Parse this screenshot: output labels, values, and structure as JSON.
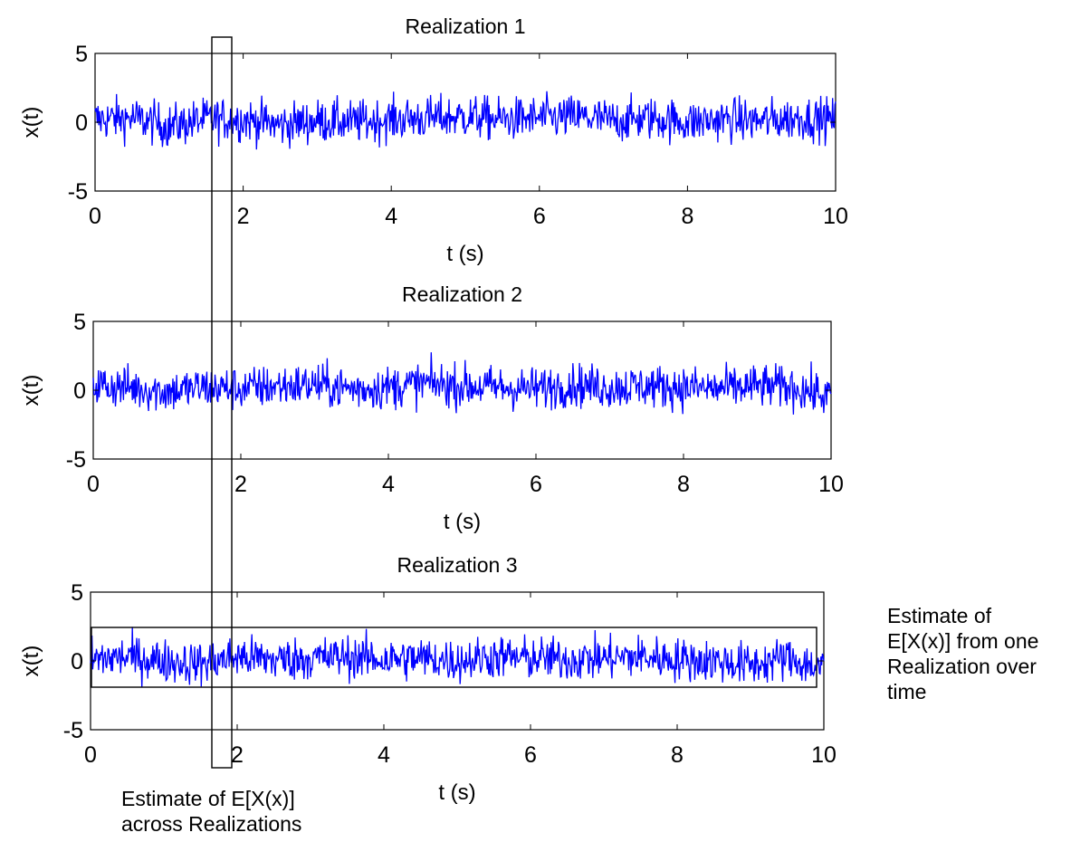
{
  "chart_data": [
    {
      "type": "line",
      "title": "Realization 1",
      "xlabel": "t (s)",
      "ylabel": "x(t)",
      "xlim": [
        0,
        10
      ],
      "ylim": [
        -5,
        5
      ],
      "xticks": [
        0,
        2,
        4,
        6,
        8,
        10
      ],
      "yticks": [
        -5,
        0,
        5
      ],
      "grid": false,
      "series": [
        {
          "color": "#0000ff",
          "x": [
            0,
            0.5,
            1,
            1.5,
            2,
            2.5,
            3,
            3.5,
            4,
            4.5,
            5,
            5.5,
            6,
            6.5,
            7,
            7.5,
            8,
            8.5,
            9,
            9.5,
            10
          ],
          "y": [
            0.2,
            0.3,
            -0.3,
            0.2,
            0.2,
            -0.2,
            0.1,
            0.0,
            0.2,
            0.3,
            0.4,
            0.2,
            0.3,
            0.4,
            0.1,
            0.3,
            0.0,
            0.2,
            0.1,
            0.3,
            0.2
          ]
        }
      ]
    },
    {
      "type": "line",
      "title": "Realization 2",
      "xlabel": "t (s)",
      "ylabel": "x(t)",
      "xlim": [
        0,
        10
      ],
      "ylim": [
        -5,
        5
      ],
      "xticks": [
        0,
        2,
        4,
        6,
        8,
        10
      ],
      "yticks": [
        -5,
        0,
        5
      ],
      "grid": false,
      "series": [
        {
          "color": "#0000ff",
          "x": [
            0,
            0.5,
            1,
            1.5,
            2,
            2.5,
            3,
            3.5,
            4,
            4.5,
            5,
            5.5,
            6,
            6.5,
            7,
            7.5,
            8,
            8.5,
            9,
            9.5,
            10
          ],
          "y": [
            0.4,
            0.2,
            -0.1,
            0.2,
            0.1,
            0.3,
            0.4,
            0.1,
            0.2,
            0.5,
            0.3,
            0.2,
            0.1,
            0.4,
            0.2,
            0.3,
            0.2,
            0.1,
            0.3,
            0.2,
            -0.5
          ]
        }
      ]
    },
    {
      "type": "line",
      "title": "Realization 3",
      "xlabel": "t (s)",
      "ylabel": "x(t)",
      "xlim": [
        0,
        10
      ],
      "ylim": [
        -5,
        5
      ],
      "xticks": [
        0,
        2,
        4,
        6,
        8,
        10
      ],
      "yticks": [
        -5,
        0,
        5
      ],
      "grid": false,
      "series": [
        {
          "color": "#0000ff",
          "x": [
            0,
            0.5,
            1,
            1.5,
            2,
            2.5,
            3,
            3.5,
            4,
            4.5,
            5,
            5.5,
            6,
            6.5,
            7,
            7.5,
            8,
            8.5,
            9,
            9.5,
            10
          ],
          "y": [
            0.1,
            0.3,
            0.0,
            -0.2,
            0.3,
            0.1,
            0.2,
            0.3,
            0.1,
            0.2,
            0.0,
            0.3,
            0.2,
            0.1,
            0.2,
            0.3,
            0.1,
            0.0,
            -0.3,
            0.2,
            -0.6
          ]
        }
      ]
    }
  ],
  "annotations": {
    "across_realizations": "Estimate of E[X(x)]\nacross Realizations",
    "over_time": "Estimate of\nE[X(x)] from one\nRealization over\ntime"
  }
}
